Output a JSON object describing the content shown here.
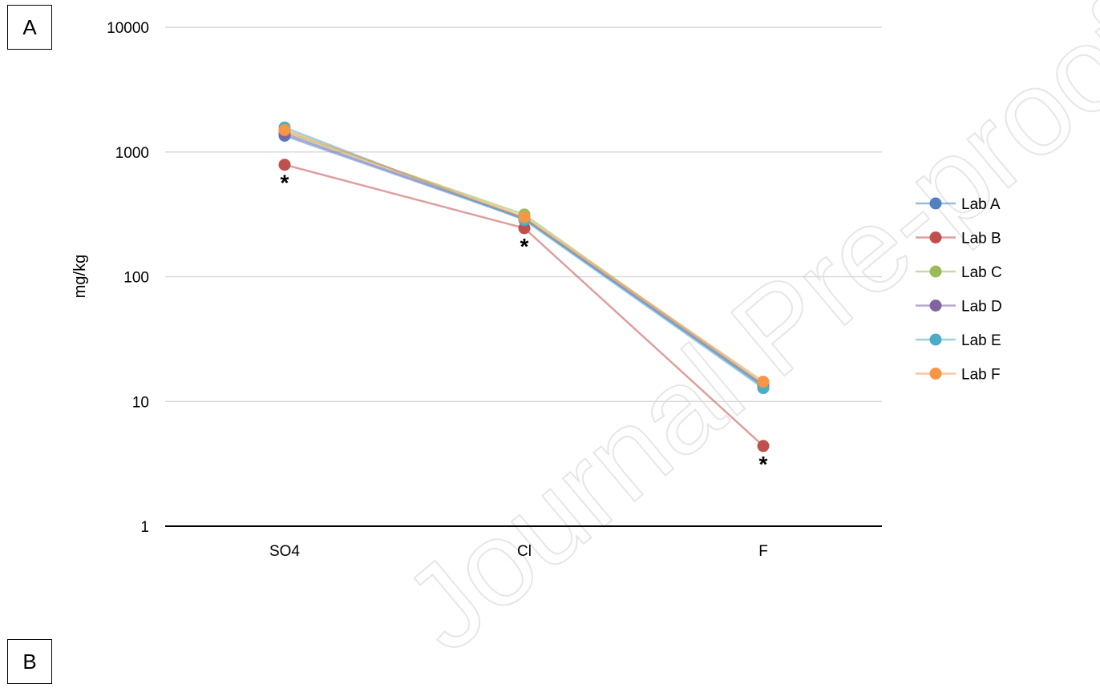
{
  "panels": {
    "a": "A",
    "b": "B"
  },
  "watermark": "Journal Pre-proof",
  "chart_data": {
    "type": "line",
    "title": "",
    "xlabel": "",
    "ylabel": "mg/kg",
    "yscale": "log",
    "ylim": [
      1,
      10000
    ],
    "yticks": [
      "1",
      "10",
      "100",
      "1000",
      "10000"
    ],
    "ytick_values": [
      1,
      10,
      100,
      1000,
      10000
    ],
    "categories": [
      "SO4",
      "Cl",
      "F"
    ],
    "grid": true,
    "legend_position": "right",
    "series": [
      {
        "name": "Lab A",
        "color": "#4f81bd",
        "values": [
          1350,
          290,
          13.2
        ]
      },
      {
        "name": "Lab B",
        "color": "#c0504d",
        "values": [
          790,
          245,
          4.4
        ]
      },
      {
        "name": "Lab C",
        "color": "#9bbb59",
        "values": [
          1450,
          315,
          13.8
        ]
      },
      {
        "name": "Lab D",
        "color": "#8064a2",
        "values": [
          1400,
          295,
          13.5
        ]
      },
      {
        "name": "Lab E",
        "color": "#4bacc6",
        "values": [
          1570,
          285,
          12.8
        ]
      },
      {
        "name": "Lab F",
        "color": "#f79646",
        "values": [
          1500,
          300,
          14.4
        ]
      }
    ],
    "annotations": [
      {
        "text": "*",
        "category": "SO4",
        "series": "Lab B"
      },
      {
        "text": "*",
        "category": "Cl",
        "series": "Lab B"
      },
      {
        "text": "*",
        "category": "F",
        "series": "Lab B"
      }
    ]
  }
}
